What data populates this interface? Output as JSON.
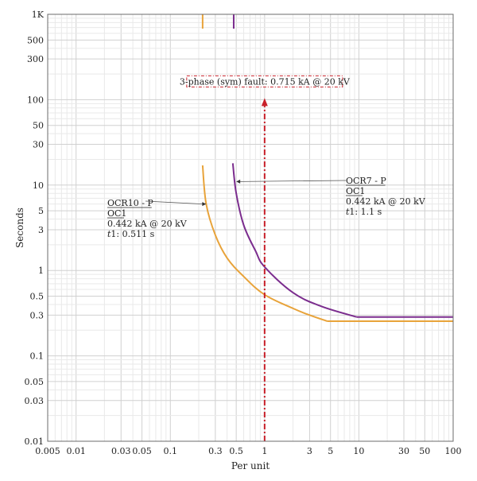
{
  "chart_data": {
    "type": "line",
    "xscale": "log",
    "yscale": "log",
    "xlim": [
      0.005,
      100
    ],
    "ylim": [
      0.01,
      1000
    ],
    "grid": true,
    "xlabel": "Per unit",
    "ylabel": "Seconds",
    "x_ticks": [
      0.005,
      0.01,
      0.03,
      0.05,
      0.1,
      0.3,
      0.5,
      1,
      3,
      5,
      10,
      30,
      50,
      100
    ],
    "x_tick_labels": [
      "0.005",
      "0.01",
      "0.03",
      "0.05",
      "0.1",
      "0.3",
      "0.5",
      "1",
      "3",
      "5",
      "10",
      "30",
      "50",
      "100"
    ],
    "y_ticks": [
      0.01,
      0.03,
      0.05,
      0.1,
      0.3,
      0.5,
      1,
      3,
      5,
      10,
      30,
      50,
      100,
      300,
      500,
      1000
    ],
    "y_tick_labels": [
      "0.01",
      "0.03",
      "0.05",
      "0.1",
      "0.3",
      "0.5",
      "1",
      "3",
      "5",
      "10",
      "30",
      "50",
      "100",
      "300",
      "500",
      "1K"
    ],
    "series": [
      {
        "name": "OCR10 - P",
        "color": "#E8A33A",
        "curve": [
          [
            0.22,
            17
          ],
          [
            0.24,
            6
          ],
          [
            0.3,
            2.6
          ],
          [
            0.4,
            1.4
          ],
          [
            0.6,
            0.85
          ],
          [
            1,
            0.52
          ],
          [
            2,
            0.36
          ],
          [
            3,
            0.3
          ],
          [
            4.6,
            0.255
          ],
          [
            100,
            0.255
          ]
        ],
        "stub": [
          [
            0.22,
            680
          ],
          [
            0.22,
            1050
          ]
        ]
      },
      {
        "name": "OCR7 - P",
        "color": "#7B2D8E",
        "curve": [
          [
            0.46,
            18
          ],
          [
            0.5,
            8
          ],
          [
            0.6,
            3.4
          ],
          [
            0.8,
            1.7
          ],
          [
            1,
            1.1
          ],
          [
            2,
            0.55
          ],
          [
            4,
            0.38
          ],
          [
            9.5,
            0.285
          ],
          [
            100,
            0.285
          ]
        ],
        "stub": [
          [
            0.47,
            680
          ],
          [
            0.47,
            1050
          ]
        ]
      }
    ],
    "fault_line": {
      "x": 1,
      "y_range": [
        0.01,
        100
      ],
      "label": "3-phase (sym) fault: 0.715 kA @ 20 kV",
      "color": "#C8202A"
    },
    "annotations": [
      {
        "id": "ocr10",
        "lines": [
          "OCR10 - P",
          "OC1",
          "0.442 kA @ 20 kV",
          "t1: 0.511 s"
        ],
        "target": [
          0.24,
          6
        ]
      },
      {
        "id": "ocr7",
        "lines": [
          "OCR7 - P",
          "OC1",
          "0.442 kA @ 20 kV",
          "t1: 1.1 s"
        ],
        "target": [
          0.5,
          11
        ]
      }
    ]
  }
}
